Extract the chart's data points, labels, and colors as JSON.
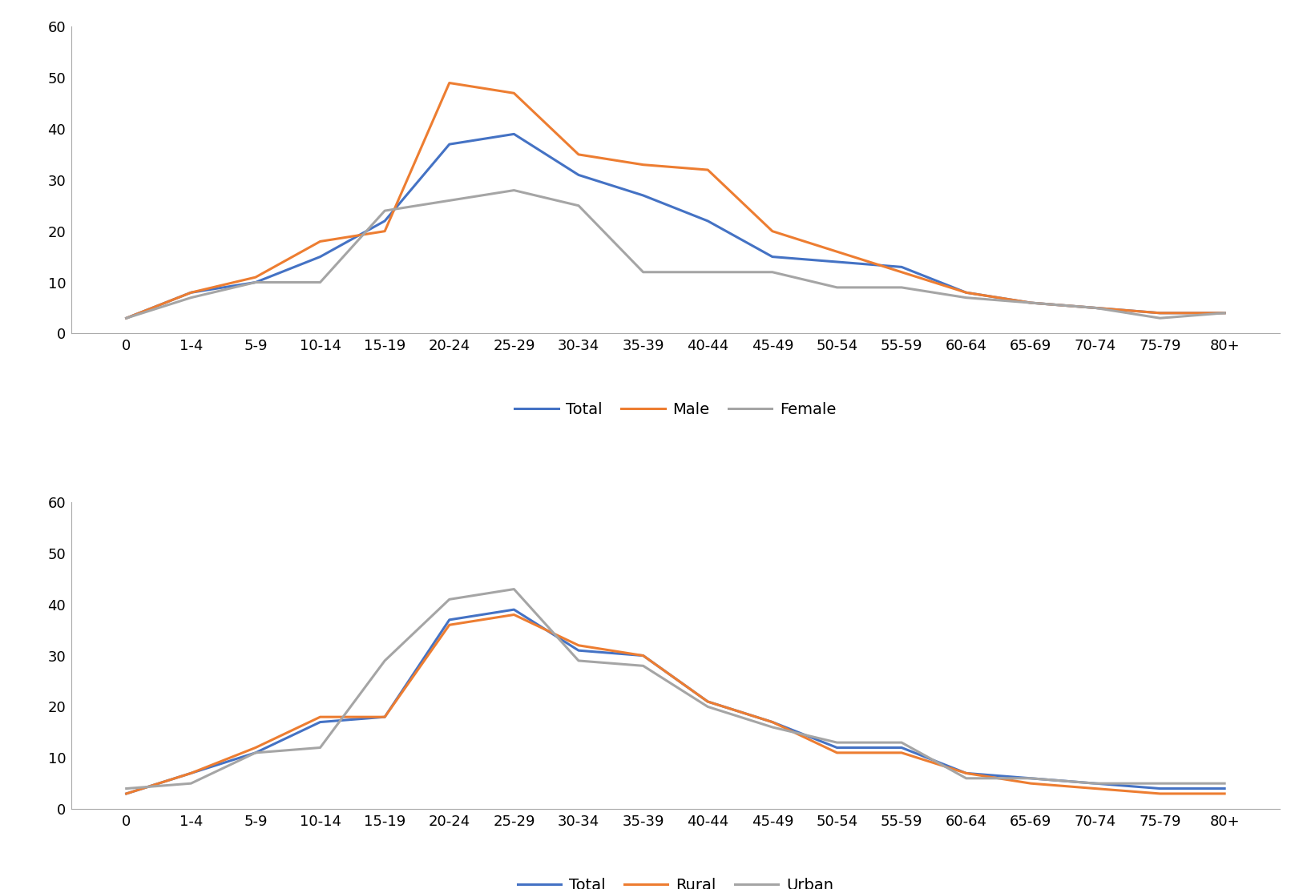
{
  "categories": [
    "0",
    "1-4",
    "5-9",
    "10-14",
    "15-19",
    "20-24",
    "25-29",
    "30-34",
    "35-39",
    "40-44",
    "45-49",
    "50-54",
    "55-59",
    "60-64",
    "65-69",
    "70-74",
    "75-79",
    "80+"
  ],
  "chart1": {
    "total": [
      3,
      8,
      10,
      15,
      22,
      37,
      39,
      31,
      27,
      22,
      15,
      14,
      13,
      8,
      6,
      5,
      4,
      4
    ],
    "male": [
      3,
      8,
      11,
      18,
      20,
      49,
      47,
      35,
      33,
      32,
      20,
      16,
      12,
      8,
      6,
      5,
      4,
      4
    ],
    "female": [
      3,
      7,
      10,
      10,
      24,
      26,
      28,
      25,
      12,
      12,
      12,
      9,
      9,
      7,
      6,
      5,
      3,
      4
    ],
    "colors": {
      "total": "#4472C4",
      "male": "#ED7D31",
      "female": "#A5A5A5"
    },
    "legend": [
      "Total",
      "Male",
      "Female"
    ]
  },
  "chart2": {
    "total": [
      3,
      7,
      11,
      17,
      18,
      37,
      39,
      31,
      30,
      21,
      17,
      12,
      12,
      7,
      6,
      5,
      4,
      4
    ],
    "rural": [
      3,
      7,
      12,
      18,
      18,
      36,
      38,
      32,
      30,
      21,
      17,
      11,
      11,
      7,
      5,
      4,
      3,
      3
    ],
    "urban": [
      4,
      5,
      11,
      12,
      29,
      41,
      43,
      29,
      28,
      20,
      16,
      13,
      13,
      6,
      6,
      5,
      5,
      5
    ],
    "colors": {
      "total": "#4472C4",
      "rural": "#ED7D31",
      "urban": "#A5A5A5"
    },
    "legend": [
      "Total",
      "Rural",
      "Urban"
    ]
  },
  "ylim": [
    0,
    60
  ],
  "yticks": [
    0,
    10,
    20,
    30,
    40,
    50,
    60
  ],
  "line_width": 2.2,
  "legend_fontsize": 14,
  "tick_fontsize": 13,
  "background_color": "#FFFFFF"
}
